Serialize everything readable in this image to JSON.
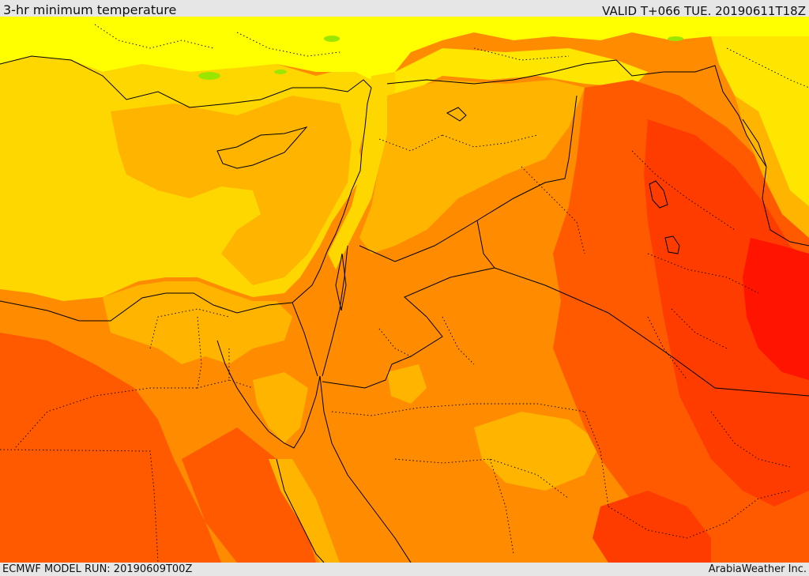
{
  "header": {
    "title": "3-hr minimum temperature",
    "valid_time": "VALID T+066 TUE. 20190611T18Z"
  },
  "footer": {
    "model_run": "ECMWF MODEL RUN: 20190609T00Z",
    "credit": "ArabiaWeather Inc."
  },
  "palette": {
    "lime": "#9be600",
    "yellow": "#ffff00",
    "light_gold": "#ffe600",
    "gold": "#ffd700",
    "amber": "#ffb400",
    "orange": "#ff8c00",
    "deep_orange": "#ff5a00",
    "red_orange": "#ff3c00",
    "red": "#ff1400",
    "border_line": "#000000"
  }
}
